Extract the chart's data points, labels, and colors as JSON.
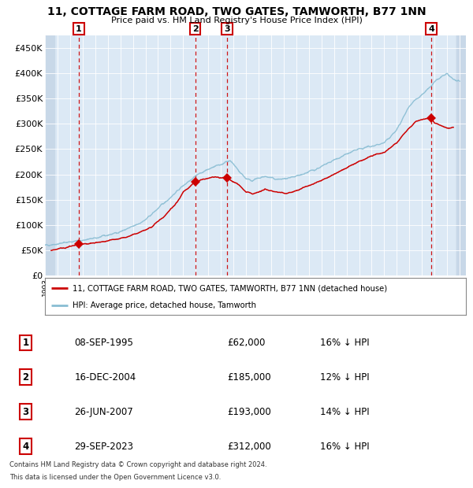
{
  "title": "11, COTTAGE FARM ROAD, TWO GATES, TAMWORTH, B77 1NN",
  "subtitle": "Price paid vs. HM Land Registry's House Price Index (HPI)",
  "xlim": [
    1993.0,
    2026.5
  ],
  "ylim": [
    0,
    475000
  ],
  "yticks": [
    0,
    50000,
    100000,
    150000,
    200000,
    250000,
    300000,
    350000,
    400000,
    450000
  ],
  "ytick_labels": [
    "£0",
    "£50K",
    "£100K",
    "£150K",
    "£200K",
    "£250K",
    "£300K",
    "£350K",
    "£400K",
    "£450K"
  ],
  "sale_dates_num": [
    1995.69,
    2004.96,
    2007.49,
    2023.75
  ],
  "sale_prices": [
    62000,
    185000,
    193000,
    312000
  ],
  "sale_labels": [
    "1",
    "2",
    "3",
    "4"
  ],
  "legend_line1": "11, COTTAGE FARM ROAD, TWO GATES, TAMWORTH, B77 1NN (detached house)",
  "legend_line2": "HPI: Average price, detached house, Tamworth",
  "table_rows": [
    [
      "1",
      "08-SEP-1995",
      "£62,000",
      "16% ↓ HPI"
    ],
    [
      "2",
      "16-DEC-2004",
      "£185,000",
      "12% ↓ HPI"
    ],
    [
      "3",
      "26-JUN-2007",
      "£193,000",
      "14% ↓ HPI"
    ],
    [
      "4",
      "29-SEP-2023",
      "£312,000",
      "16% ↓ HPI"
    ]
  ],
  "footnote1": "Contains HM Land Registry data © Crown copyright and database right 2024.",
  "footnote2": "This data is licensed under the Open Government Licence v3.0.",
  "hpi_color": "#89bdd3",
  "sale_color": "#cc0000",
  "plot_bg": "#dce9f5",
  "grid_color": "#ffffff",
  "hatch_bg": "#c8d8e8",
  "hpi_anchors": [
    [
      1993.0,
      60000
    ],
    [
      1994.0,
      63000
    ],
    [
      1995.0,
      67000
    ],
    [
      1996.0,
      70000
    ],
    [
      1997.0,
      74000
    ],
    [
      1998.0,
      80000
    ],
    [
      1999.0,
      87000
    ],
    [
      2000.0,
      97000
    ],
    [
      2001.0,
      110000
    ],
    [
      2002.0,
      133000
    ],
    [
      2003.0,
      155000
    ],
    [
      2004.0,
      178000
    ],
    [
      2005.0,
      198000
    ],
    [
      2006.0,
      210000
    ],
    [
      2007.0,
      220000
    ],
    [
      2007.75,
      228000
    ],
    [
      2008.5,
      205000
    ],
    [
      2009.0,
      192000
    ],
    [
      2009.5,
      188000
    ],
    [
      2010.0,
      192000
    ],
    [
      2010.5,
      196000
    ],
    [
      2011.0,
      193000
    ],
    [
      2011.5,
      190000
    ],
    [
      2012.0,
      191000
    ],
    [
      2012.5,
      192000
    ],
    [
      2013.0,
      196000
    ],
    [
      2014.0,
      205000
    ],
    [
      2015.0,
      215000
    ],
    [
      2016.0,
      228000
    ],
    [
      2017.0,
      240000
    ],
    [
      2018.0,
      250000
    ],
    [
      2019.0,
      256000
    ],
    [
      2020.0,
      262000
    ],
    [
      2021.0,
      288000
    ],
    [
      2022.0,
      335000
    ],
    [
      2022.5,
      348000
    ],
    [
      2023.0,
      358000
    ],
    [
      2023.5,
      368000
    ],
    [
      2024.0,
      382000
    ],
    [
      2024.5,
      392000
    ],
    [
      2025.0,
      398000
    ],
    [
      2025.5,
      388000
    ],
    [
      2026.0,
      382000
    ]
  ],
  "sale_anchors": [
    [
      1993.5,
      50000
    ],
    [
      1994.5,
      55000
    ],
    [
      1995.69,
      62000
    ],
    [
      1996.5,
      64000
    ],
    [
      1997.5,
      66000
    ],
    [
      1998.5,
      71000
    ],
    [
      1999.5,
      76000
    ],
    [
      2000.5,
      85000
    ],
    [
      2001.5,
      96000
    ],
    [
      2002.5,
      118000
    ],
    [
      2003.5,
      145000
    ],
    [
      2004.0,
      165000
    ],
    [
      2004.96,
      185000
    ],
    [
      2005.5,
      190000
    ],
    [
      2006.5,
      195000
    ],
    [
      2007.0,
      194000
    ],
    [
      2007.49,
      193000
    ],
    [
      2007.8,
      188000
    ],
    [
      2008.5,
      178000
    ],
    [
      2009.0,
      165000
    ],
    [
      2009.5,
      162000
    ],
    [
      2010.0,
      166000
    ],
    [
      2010.5,
      170000
    ],
    [
      2011.0,
      168000
    ],
    [
      2011.5,
      165000
    ],
    [
      2012.0,
      163000
    ],
    [
      2012.5,
      164000
    ],
    [
      2013.0,
      168000
    ],
    [
      2014.0,
      178000
    ],
    [
      2015.0,
      188000
    ],
    [
      2016.0,
      200000
    ],
    [
      2017.0,
      213000
    ],
    [
      2018.0,
      226000
    ],
    [
      2019.0,
      236000
    ],
    [
      2020.0,
      243000
    ],
    [
      2021.0,
      263000
    ],
    [
      2022.0,
      293000
    ],
    [
      2022.5,
      304000
    ],
    [
      2023.0,
      308000
    ],
    [
      2023.5,
      311000
    ],
    [
      2023.75,
      312000
    ],
    [
      2024.0,
      302000
    ],
    [
      2024.5,
      296000
    ],
    [
      2025.0,
      291000
    ],
    [
      2025.5,
      293000
    ]
  ]
}
